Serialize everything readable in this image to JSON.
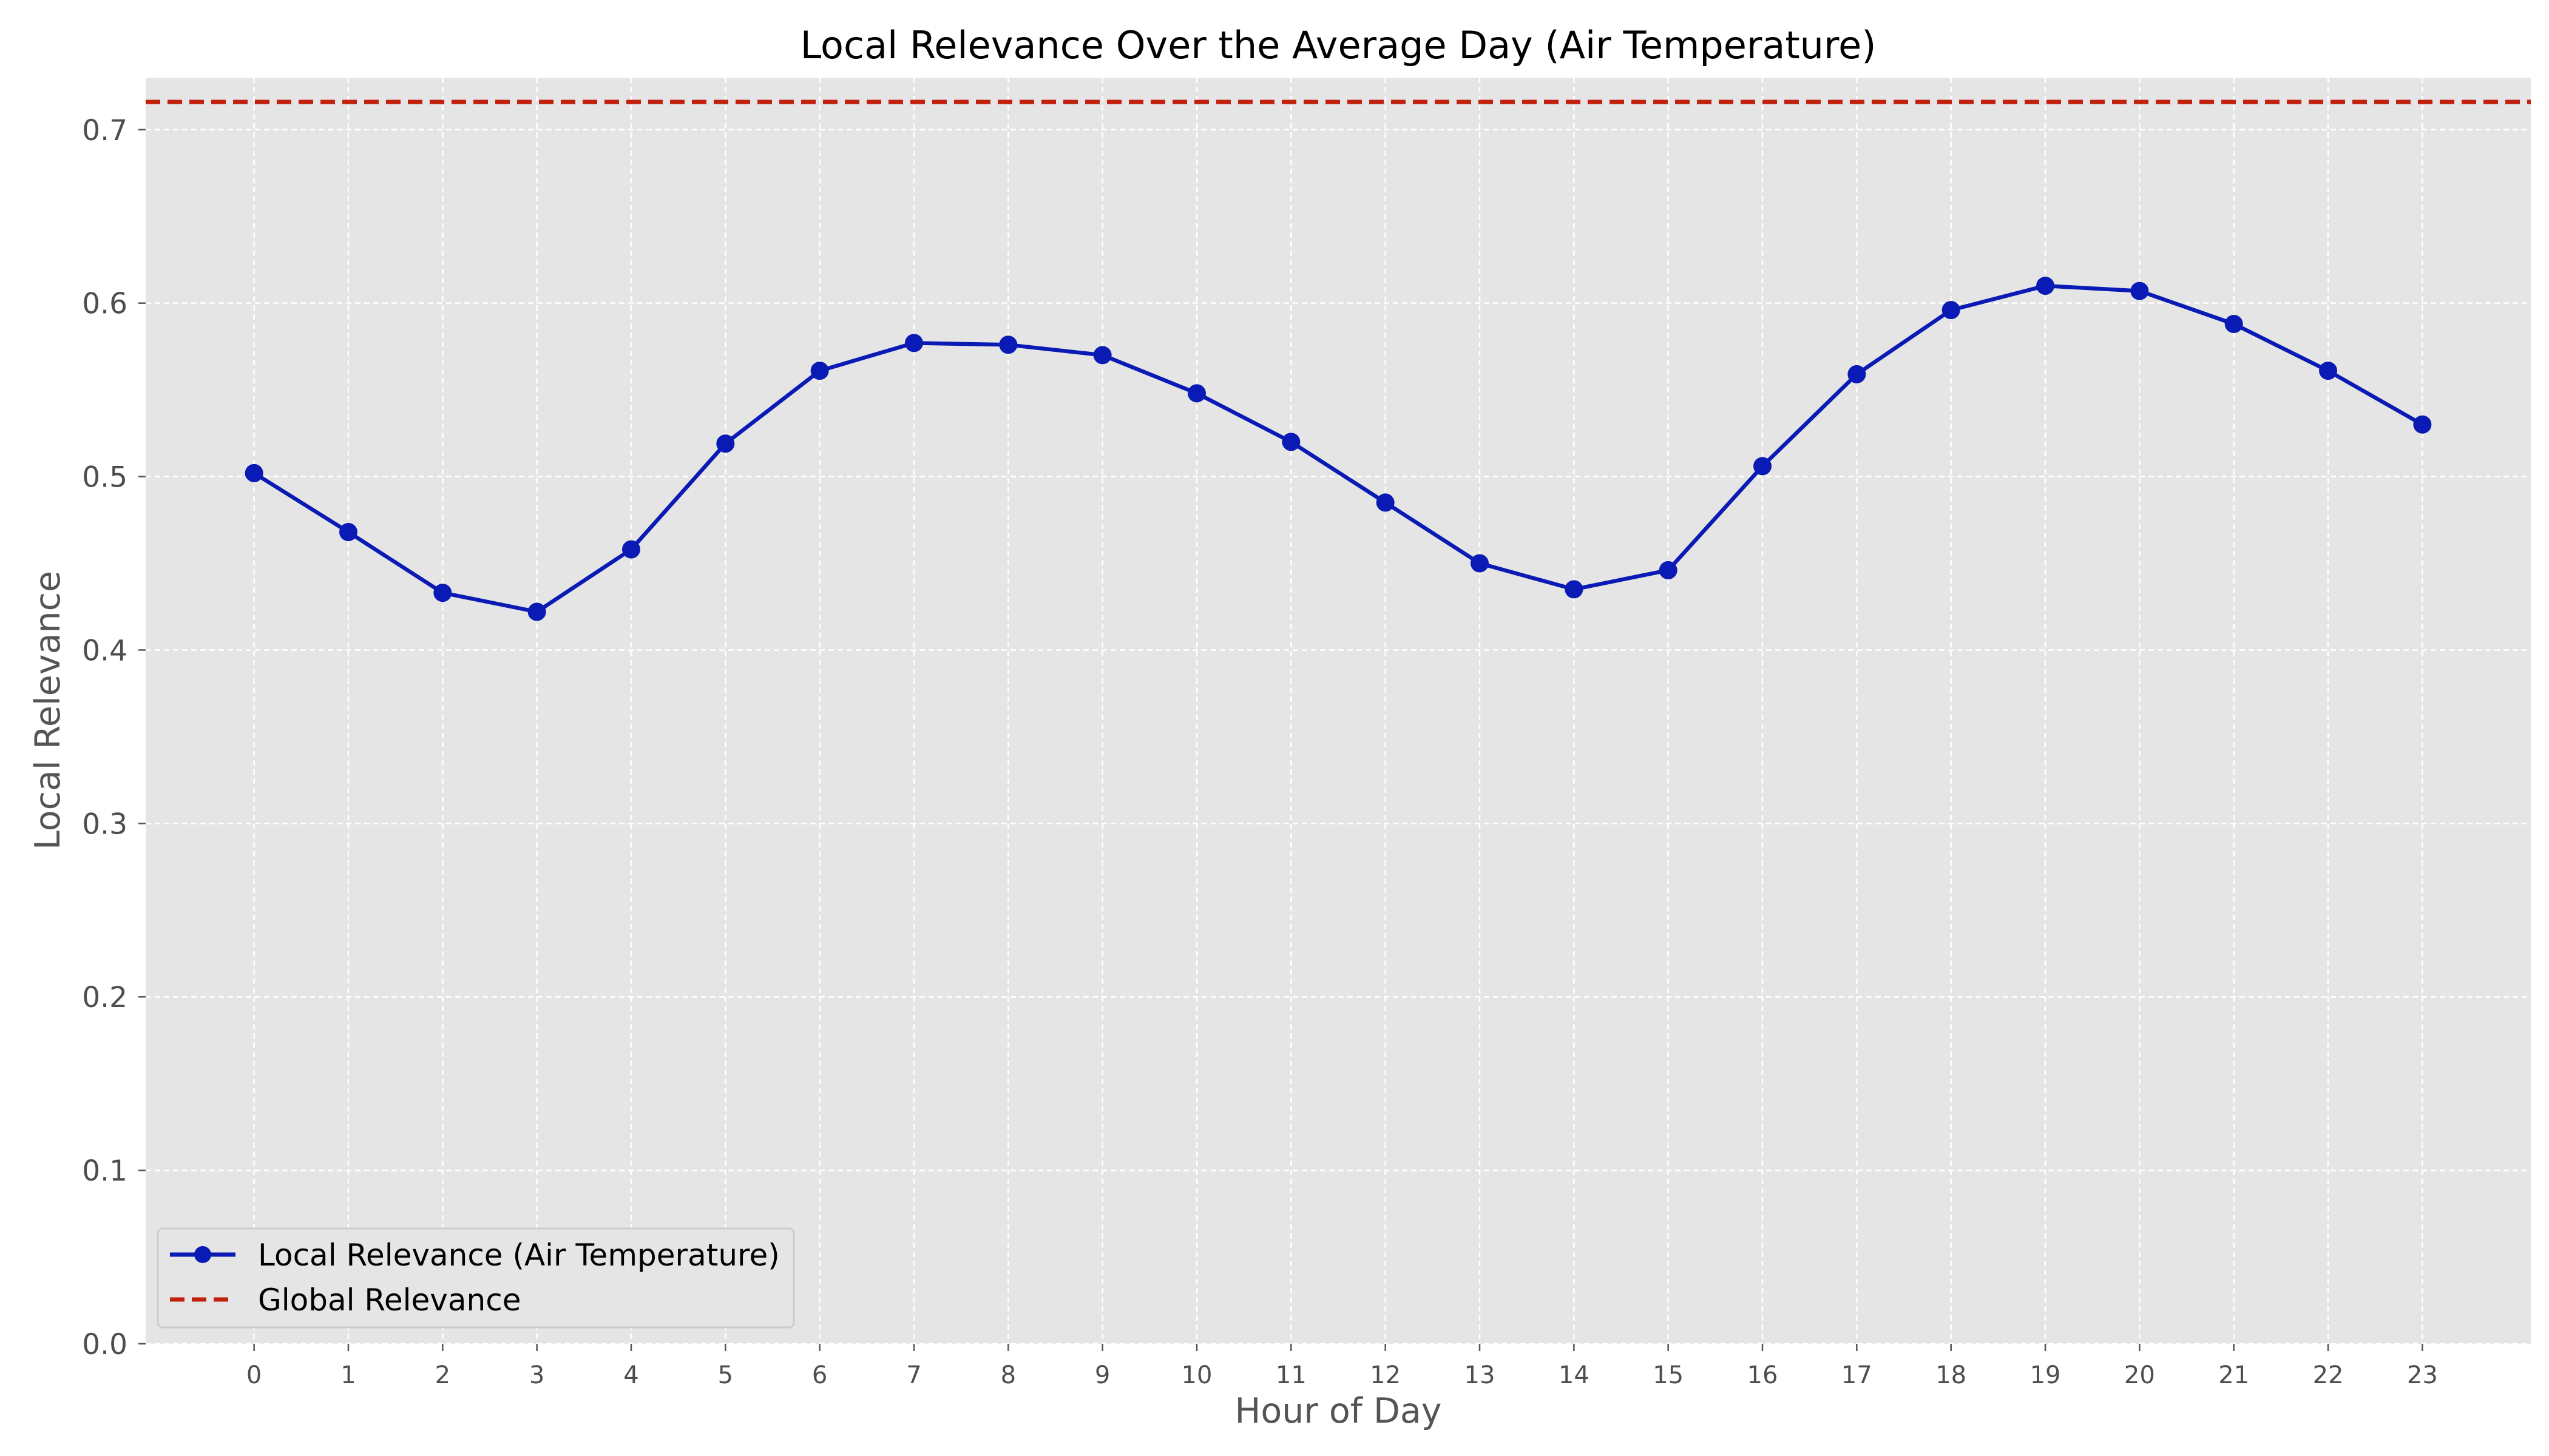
{
  "chart_data": {
    "type": "line",
    "title": "Local Relevance Over the Average Day (Air Temperature)",
    "xlabel": "Hour of Day",
    "ylabel": "Local Relevance",
    "x": [
      0,
      1,
      2,
      3,
      4,
      5,
      6,
      7,
      8,
      9,
      10,
      11,
      12,
      13,
      14,
      15,
      16,
      17,
      18,
      19,
      20,
      21,
      22,
      23
    ],
    "xlim": [
      -1.15,
      24.15
    ],
    "ylim": [
      0,
      0.73
    ],
    "yticks": [
      "0.0",
      "0.1",
      "0.2",
      "0.3",
      "0.4",
      "0.5",
      "0.6",
      "0.7"
    ],
    "xticks": [
      "0",
      "1",
      "2",
      "3",
      "4",
      "5",
      "6",
      "7",
      "8",
      "9",
      "10",
      "11",
      "12",
      "13",
      "14",
      "15",
      "16",
      "17",
      "18",
      "19",
      "20",
      "21",
      "22",
      "23"
    ],
    "grid": true,
    "legend_position": "lower-left",
    "series": [
      {
        "name": "Local Relevance (Air Temperature)",
        "color": "#0a1ab4",
        "marker": "circle",
        "values": [
          0.502,
          0.468,
          0.433,
          0.422,
          0.458,
          0.519,
          0.561,
          0.577,
          0.576,
          0.57,
          0.548,
          0.52,
          0.485,
          0.45,
          0.435,
          0.446,
          0.506,
          0.559,
          0.596,
          0.61,
          0.607,
          0.588,
          0.561,
          0.53
        ]
      }
    ],
    "reference_lines": [
      {
        "name": "Global Relevance",
        "value": 0.716,
        "color": "#c0200c",
        "style": "dashed"
      }
    ],
    "legend": [
      {
        "label": "Local Relevance (Air Temperature)"
      },
      {
        "label": "Global Relevance"
      }
    ]
  }
}
